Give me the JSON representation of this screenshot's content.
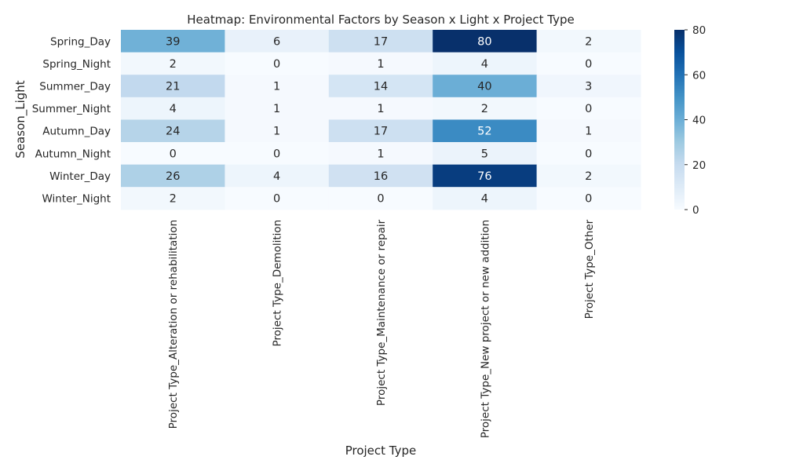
{
  "chart_data": {
    "type": "heatmap",
    "title": "Heatmap: Environmental Factors by Season x Light x Project Type",
    "xlabel": "Project Type",
    "ylabel": "Season_Light",
    "x_categories": [
      "Project Type_Alteration or rehabilitation",
      "Project Type_Demolition",
      "Project Type_Maintenance or repair",
      "Project Type_New project or new addition",
      "Project Type_Other"
    ],
    "y_categories": [
      "Spring_Day",
      "Spring_Night",
      "Summer_Day",
      "Summer_Night",
      "Autumn_Day",
      "Autumn_Night",
      "Winter_Day",
      "Winter_Night"
    ],
    "values": [
      [
        39,
        6,
        17,
        80,
        2
      ],
      [
        2,
        0,
        1,
        4,
        0
      ],
      [
        21,
        1,
        14,
        40,
        3
      ],
      [
        4,
        1,
        1,
        2,
        0
      ],
      [
        24,
        1,
        17,
        52,
        1
      ],
      [
        0,
        0,
        1,
        5,
        0
      ],
      [
        26,
        4,
        16,
        76,
        2
      ],
      [
        2,
        0,
        0,
        4,
        0
      ]
    ],
    "colormap": "Blues",
    "vmin": 0,
    "vmax": 80,
    "colorbar_ticks": [
      0,
      20,
      40,
      60,
      80
    ],
    "annotated": true
  }
}
